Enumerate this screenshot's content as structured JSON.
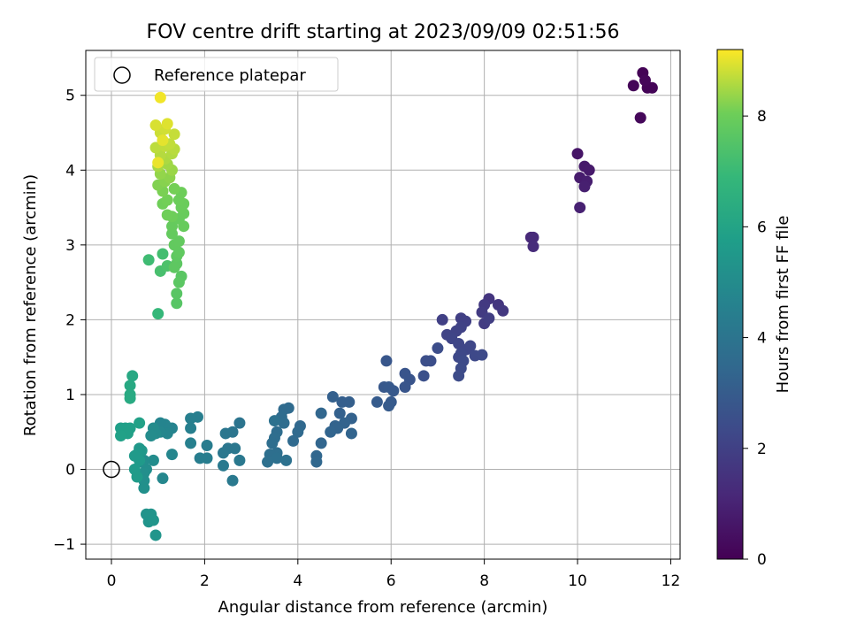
{
  "chart_data": {
    "type": "scatter",
    "title": "FOV centre drift starting at 2023/09/09 02:51:56",
    "xlabel": "Angular distance from reference (arcmin)",
    "ylabel": "Rotation from reference (arcmin)",
    "xlim": [
      -0.55,
      12.2
    ],
    "ylim": [
      -1.2,
      5.6
    ],
    "xticks": [
      0,
      2,
      4,
      6,
      8,
      10,
      12
    ],
    "yticks": [
      -1,
      0,
      1,
      2,
      3,
      4,
      5
    ],
    "grid": true,
    "legend": {
      "placement": "top-left",
      "entries": [
        "Reference platepar"
      ]
    },
    "reference_point": {
      "x": 0,
      "y": 0
    },
    "colorbar": {
      "label": "Hours from first FF file",
      "colormap": "viridis",
      "range": [
        0,
        9.2
      ],
      "ticks": [
        0,
        2,
        4,
        6,
        8
      ]
    },
    "series": [
      {
        "points": [
          [
            11.4,
            5.3,
            0.05
          ],
          [
            11.5,
            5.1,
            0.08
          ],
          [
            11.6,
            5.1,
            0.1
          ],
          [
            11.2,
            5.13,
            0.12
          ],
          [
            11.45,
            5.2,
            0.15
          ],
          [
            11.35,
            4.7,
            0.2
          ],
          [
            10.0,
            4.22,
            0.6
          ],
          [
            10.15,
            4.05,
            0.7
          ],
          [
            10.25,
            4.0,
            0.75
          ],
          [
            10.05,
            3.9,
            0.8
          ],
          [
            10.2,
            3.85,
            0.85
          ],
          [
            10.15,
            3.78,
            0.9
          ],
          [
            10.05,
            3.5,
            0.95
          ],
          [
            9.0,
            3.1,
            1.2
          ],
          [
            9.05,
            3.1,
            1.25
          ],
          [
            9.05,
            2.98,
            1.3
          ],
          [
            8.1,
            2.28,
            1.6
          ],
          [
            8.3,
            2.2,
            1.65
          ],
          [
            8.4,
            2.12,
            1.7
          ],
          [
            8.0,
            2.2,
            1.75
          ],
          [
            7.95,
            2.1,
            1.8
          ],
          [
            8.0,
            1.95,
            1.85
          ],
          [
            8.1,
            2.02,
            1.9
          ],
          [
            7.5,
            2.02,
            1.95
          ],
          [
            7.6,
            1.98,
            2.0
          ],
          [
            7.1,
            2.0,
            2.0
          ],
          [
            7.5,
            1.9,
            2.05
          ],
          [
            7.4,
            1.85,
            2.1
          ],
          [
            7.2,
            1.8,
            2.12
          ],
          [
            7.3,
            1.75,
            2.15
          ],
          [
            7.45,
            1.68,
            2.18
          ],
          [
            7.6,
            1.6,
            2.2
          ],
          [
            7.7,
            1.65,
            2.22
          ],
          [
            7.5,
            1.55,
            2.25
          ],
          [
            7.45,
            1.5,
            2.28
          ],
          [
            7.8,
            1.52,
            2.3
          ],
          [
            7.95,
            1.53,
            2.32
          ],
          [
            7.55,
            1.45,
            2.35
          ],
          [
            7.5,
            1.35,
            2.38
          ],
          [
            7.45,
            1.25,
            2.4
          ],
          [
            7.0,
            1.62,
            2.45
          ],
          [
            6.85,
            1.45,
            2.5
          ],
          [
            6.75,
            1.45,
            2.52
          ],
          [
            6.7,
            1.25,
            2.55
          ],
          [
            6.4,
            1.2,
            2.7
          ],
          [
            6.3,
            1.28,
            2.72
          ],
          [
            6.3,
            1.1,
            2.75
          ],
          [
            5.9,
            1.45,
            2.8
          ],
          [
            5.85,
            1.1,
            2.85
          ],
          [
            5.95,
            1.1,
            2.88
          ],
          [
            6.05,
            1.05,
            2.9
          ],
          [
            6.0,
            0.9,
            2.92
          ],
          [
            5.95,
            0.85,
            2.95
          ],
          [
            5.7,
            0.9,
            2.98
          ],
          [
            5.1,
            0.9,
            3.1
          ],
          [
            4.95,
            0.9,
            3.12
          ],
          [
            4.75,
            0.97,
            3.15
          ],
          [
            4.9,
            0.75,
            3.2
          ],
          [
            5.15,
            0.68,
            3.22
          ],
          [
            5.0,
            0.62,
            3.25
          ],
          [
            4.8,
            0.58,
            3.28
          ],
          [
            4.85,
            0.55,
            3.3
          ],
          [
            5.15,
            0.48,
            3.32
          ],
          [
            4.7,
            0.5,
            3.35
          ],
          [
            4.5,
            0.35,
            3.38
          ],
          [
            4.5,
            0.75,
            3.4
          ],
          [
            4.4,
            0.18,
            3.42
          ],
          [
            4.4,
            0.1,
            3.45
          ],
          [
            4.05,
            0.58,
            3.5
          ],
          [
            4.0,
            0.5,
            3.52
          ],
          [
            3.9,
            0.38,
            3.55
          ],
          [
            3.8,
            0.82,
            3.58
          ],
          [
            3.7,
            0.8,
            3.6
          ],
          [
            3.65,
            0.7,
            3.62
          ],
          [
            3.7,
            0.62,
            3.65
          ],
          [
            3.55,
            0.5,
            3.68
          ],
          [
            3.5,
            0.42,
            3.7
          ],
          [
            3.45,
            0.35,
            3.72
          ],
          [
            3.55,
            0.22,
            3.75
          ],
          [
            3.4,
            0.2,
            3.78
          ],
          [
            3.35,
            0.1,
            3.8
          ],
          [
            3.55,
            0.15,
            3.82
          ],
          [
            3.75,
            0.12,
            3.84
          ],
          [
            3.5,
            0.65,
            3.86
          ],
          [
            2.75,
            0.62,
            4.0
          ],
          [
            2.6,
            0.5,
            4.02
          ],
          [
            2.45,
            0.48,
            4.05
          ],
          [
            2.5,
            0.28,
            4.08
          ],
          [
            2.65,
            0.28,
            4.1
          ],
          [
            2.4,
            0.22,
            4.12
          ],
          [
            2.75,
            0.12,
            4.15
          ],
          [
            2.4,
            0.05,
            4.18
          ],
          [
            2.6,
            -0.15,
            4.2
          ],
          [
            2.05,
            0.32,
            4.35
          ],
          [
            2.05,
            0.15,
            4.38
          ],
          [
            1.9,
            0.15,
            4.4
          ],
          [
            1.85,
            0.7,
            4.42
          ],
          [
            1.7,
            0.68,
            4.45
          ],
          [
            1.7,
            0.55,
            4.48
          ],
          [
            1.7,
            0.35,
            4.5
          ],
          [
            1.3,
            0.55,
            4.65
          ],
          [
            1.15,
            0.6,
            4.68
          ],
          [
            1.05,
            0.62,
            4.7
          ],
          [
            1.2,
            0.48,
            4.72
          ],
          [
            1.05,
            0.5,
            4.75
          ],
          [
            1.3,
            0.2,
            4.78
          ],
          [
            1.1,
            -0.12,
            4.8
          ],
          [
            0.9,
            0.55,
            4.95
          ],
          [
            0.95,
            0.48,
            4.98
          ],
          [
            0.85,
            0.45,
            5.0
          ],
          [
            0.9,
            0.12,
            5.02
          ],
          [
            0.7,
            0.12,
            5.05
          ],
          [
            0.65,
            0.1,
            5.08
          ],
          [
            0.75,
            0.0,
            5.1
          ],
          [
            0.7,
            -0.05,
            5.12
          ],
          [
            0.7,
            -0.15,
            5.15
          ],
          [
            0.7,
            -0.25,
            5.18
          ],
          [
            0.75,
            -0.6,
            5.3
          ],
          [
            0.85,
            -0.6,
            5.32
          ],
          [
            0.8,
            -0.7,
            5.35
          ],
          [
            0.9,
            -0.68,
            5.38
          ],
          [
            0.95,
            -0.88,
            5.4
          ],
          [
            0.6,
            0.28,
            5.5
          ],
          [
            0.65,
            0.25,
            5.52
          ],
          [
            0.55,
            0.2,
            5.55
          ],
          [
            0.5,
            0.18,
            5.58
          ],
          [
            0.6,
            0.12,
            5.6
          ],
          [
            0.5,
            0.0,
            5.62
          ],
          [
            0.55,
            -0.1,
            5.64
          ],
          [
            0.2,
            0.55,
            5.8
          ],
          [
            0.3,
            0.55,
            5.82
          ],
          [
            0.4,
            0.55,
            5.84
          ],
          [
            0.35,
            0.48,
            5.86
          ],
          [
            0.2,
            0.45,
            5.88
          ],
          [
            0.6,
            0.62,
            5.9
          ],
          [
            0.45,
            1.25,
            6.2
          ],
          [
            0.4,
            1.12,
            6.22
          ],
          [
            0.4,
            1.0,
            6.25
          ],
          [
            0.4,
            0.95,
            6.28
          ],
          [
            1.0,
            2.08,
            6.9
          ],
          [
            0.8,
            2.8,
            7.1
          ],
          [
            1.1,
            2.88,
            7.2
          ],
          [
            1.05,
            2.65,
            7.3
          ],
          [
            1.2,
            2.72,
            7.4
          ],
          [
            1.4,
            2.22,
            7.6
          ],
          [
            1.4,
            2.35,
            7.62
          ],
          [
            1.5,
            2.58,
            7.65
          ],
          [
            1.45,
            2.5,
            7.68
          ],
          [
            1.4,
            2.75,
            7.7
          ],
          [
            1.35,
            2.7,
            7.72
          ],
          [
            1.4,
            2.85,
            7.75
          ],
          [
            1.45,
            2.9,
            7.78
          ],
          [
            1.35,
            3.0,
            7.8
          ],
          [
            1.45,
            3.05,
            7.82
          ],
          [
            1.3,
            3.15,
            7.84
          ],
          [
            1.3,
            3.25,
            7.86
          ],
          [
            1.45,
            3.35,
            7.88
          ],
          [
            1.55,
            3.25,
            7.9
          ],
          [
            1.55,
            3.42,
            7.92
          ],
          [
            1.5,
            3.5,
            7.94
          ],
          [
            1.55,
            3.55,
            7.96
          ],
          [
            1.45,
            3.6,
            7.98
          ],
          [
            1.5,
            3.7,
            8.0
          ],
          [
            1.3,
            3.38,
            8.02
          ],
          [
            1.2,
            3.4,
            8.04
          ],
          [
            1.1,
            3.55,
            8.06
          ],
          [
            1.2,
            3.6,
            8.08
          ],
          [
            1.35,
            3.75,
            8.1
          ],
          [
            1.1,
            3.72,
            8.15
          ],
          [
            1.0,
            3.8,
            8.2
          ],
          [
            1.15,
            3.85,
            8.25
          ],
          [
            1.25,
            3.9,
            8.3
          ],
          [
            1.05,
            3.95,
            8.35
          ],
          [
            1.3,
            4.0,
            8.4
          ],
          [
            1.2,
            4.08,
            8.45
          ],
          [
            1.0,
            4.05,
            8.5
          ],
          [
            1.15,
            4.15,
            8.55
          ],
          [
            1.3,
            4.22,
            8.6
          ],
          [
            1.05,
            4.2,
            8.62
          ],
          [
            1.35,
            4.28,
            8.65
          ],
          [
            0.95,
            4.3,
            8.68
          ],
          [
            1.15,
            4.32,
            8.7
          ],
          [
            1.25,
            4.35,
            8.72
          ],
          [
            1.35,
            4.48,
            8.75
          ],
          [
            1.05,
            4.5,
            8.8
          ],
          [
            1.15,
            4.55,
            8.85
          ],
          [
            0.95,
            4.6,
            8.9
          ],
          [
            1.2,
            4.62,
            8.95
          ],
          [
            1.1,
            4.4,
            9.0
          ],
          [
            1.0,
            4.1,
            9.05
          ],
          [
            1.05,
            4.97,
            9.1
          ]
        ]
      }
    ]
  }
}
